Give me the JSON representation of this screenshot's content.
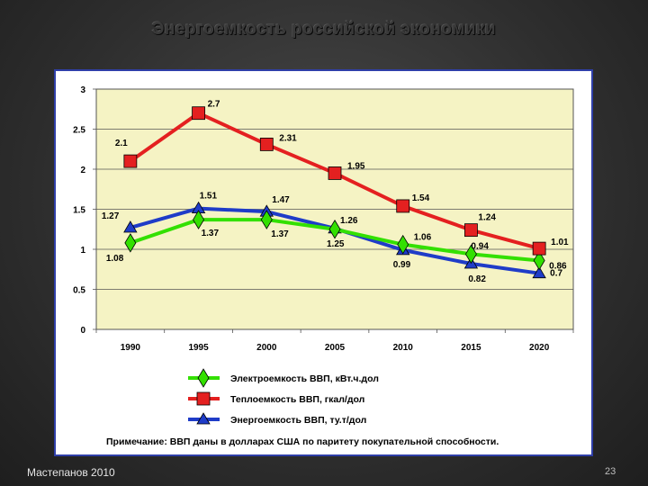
{
  "slide": {
    "title": "Энергоемкость российской экономики",
    "author": "Мастепанов 2010",
    "page_number": "23",
    "note": "Примечание: ВВП даны в долларах США по паритету покупательной способности."
  },
  "colors": {
    "plot_bg": "#f5f3c4",
    "green": "#33e000",
    "red": "#e42020",
    "blue": "#1f3cc8"
  },
  "chart_data": {
    "type": "line",
    "title": "",
    "xlabel": "",
    "ylabel": "",
    "categories": [
      "1990",
      "1995",
      "2000",
      "2005",
      "2010",
      "2015",
      "2020"
    ],
    "ylim": [
      0,
      3
    ],
    "yticks": [
      "0",
      "0.5",
      "1",
      "1.5",
      "2",
      "2.5",
      "3"
    ],
    "grid": true,
    "legend_position": "bottom",
    "series": [
      {
        "name": "Электроемкость ВВП, кВт.ч.дол",
        "marker": "diamond",
        "color": "#33e000",
        "values": [
          1.08,
          1.37,
          1.37,
          1.25,
          1.06,
          0.94,
          0.86
        ],
        "labels": [
          "1.08",
          "1.37",
          "1.37",
          "1.25",
          "1.06",
          "0.94",
          "0.86"
        ]
      },
      {
        "name": "Теплоемкость ВВП, гкал/дол",
        "marker": "square",
        "color": "#e42020",
        "values": [
          2.1,
          2.7,
          2.31,
          1.95,
          1.54,
          1.24,
          1.01
        ],
        "labels": [
          "2.1",
          "2.7",
          "2.31",
          "1.95",
          "1.54",
          "1.24",
          "1.01"
        ]
      },
      {
        "name": "Энергоемкость ВВП, ту.т/дол",
        "marker": "triangle",
        "color": "#1f3cc8",
        "values": [
          1.27,
          1.51,
          1.47,
          1.26,
          0.99,
          0.82,
          0.7
        ],
        "labels": [
          "1.27",
          "1.51",
          "1.47",
          "1.26",
          "0.99",
          "0.82",
          "0.7"
        ]
      }
    ]
  }
}
